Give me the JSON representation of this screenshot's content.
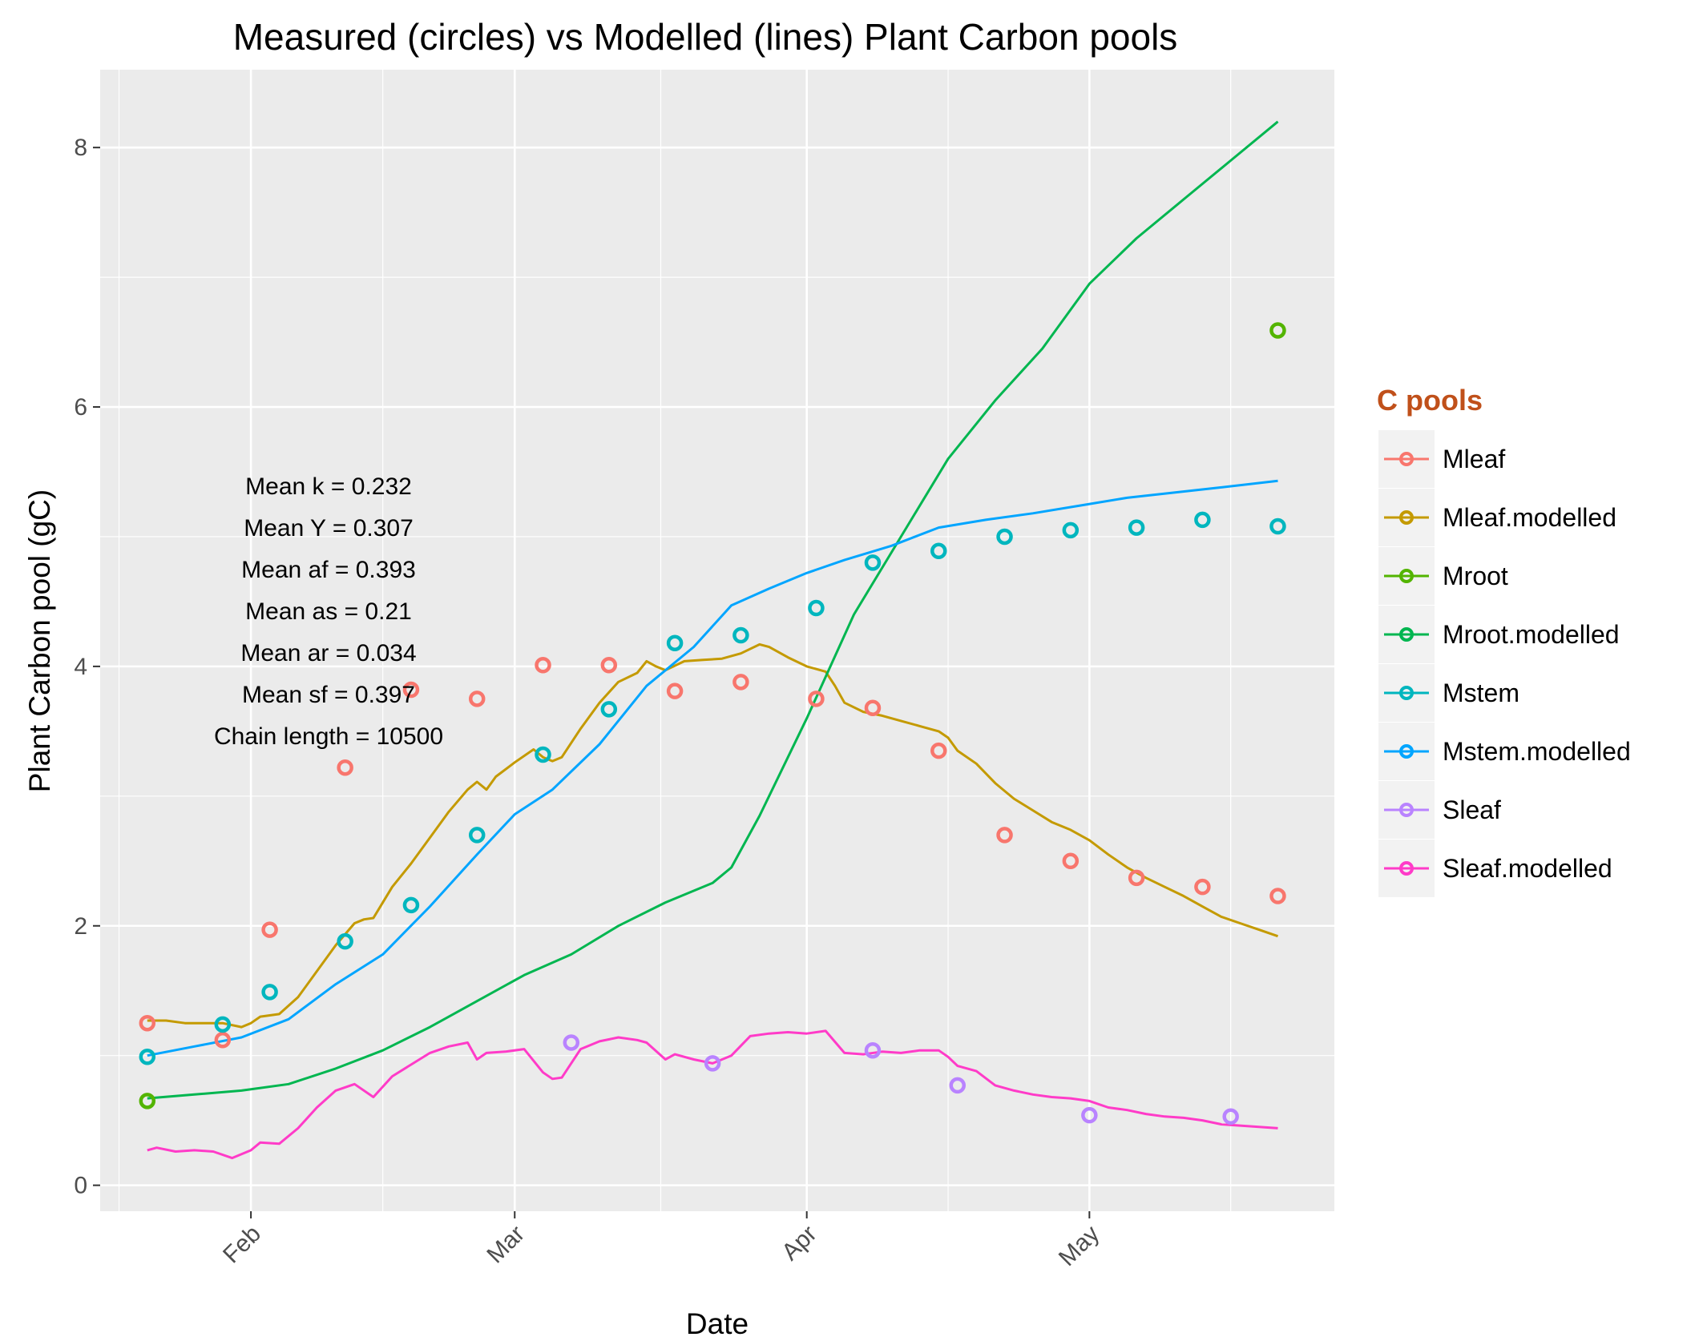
{
  "chart_data": {
    "type": "line",
    "title": "Measured (circles) vs Modelled (lines) Plant Carbon pools",
    "xlabel": "Date",
    "ylabel": "Plant Carbon pool (gC)",
    "x_unit": "date",
    "xlim": [
      "2013-01-16",
      "2013-05-27"
    ],
    "ylim": [
      -0.2,
      8.6
    ],
    "x_ticks": [
      {
        "date": "2013-02-01",
        "label": "Feb"
      },
      {
        "date": "2013-03-01",
        "label": "Mar"
      },
      {
        "date": "2013-04-01",
        "label": "Apr"
      },
      {
        "date": "2013-05-01",
        "label": "May"
      }
    ],
    "y_ticks": [
      0,
      2,
      4,
      6,
      8
    ],
    "grid": true,
    "legend": {
      "title": "C pools",
      "title_color": "#c0501a",
      "placement": "right"
    },
    "annotations": [
      "Mean k =  0.232",
      "Mean Y =  0.307",
      "Mean af =  0.393",
      "Mean as =  0.21",
      "Mean ar =  0.034",
      "Mean sf =  0.397",
      "Chain length =  10500"
    ],
    "series": [
      {
        "name": "Mleaf",
        "kind": "points",
        "color": "#f8766d",
        "points": [
          [
            "2013-01-21",
            1.25
          ],
          [
            "2013-01-29",
            1.12
          ],
          [
            "2013-02-03",
            1.97
          ],
          [
            "2013-02-11",
            3.22
          ],
          [
            "2013-02-18",
            3.82
          ],
          [
            "2013-02-25",
            3.75
          ],
          [
            "2013-03-04",
            4.01
          ],
          [
            "2013-03-11",
            4.01
          ],
          [
            "2013-03-18",
            3.81
          ],
          [
            "2013-03-25",
            3.88
          ],
          [
            "2013-04-02",
            3.75
          ],
          [
            "2013-04-08",
            3.68
          ],
          [
            "2013-04-15",
            3.35
          ],
          [
            "2013-04-22",
            2.7
          ],
          [
            "2013-04-29",
            2.5
          ],
          [
            "2013-05-06",
            2.37
          ],
          [
            "2013-05-13",
            2.3
          ],
          [
            "2013-05-21",
            2.23
          ]
        ]
      },
      {
        "name": "Mleaf.modelled",
        "kind": "line",
        "color": "#c49a00",
        "points": [
          [
            "2013-01-21",
            1.27
          ],
          [
            "2013-01-23",
            1.27
          ],
          [
            "2013-01-25",
            1.25
          ],
          [
            "2013-01-27",
            1.25
          ],
          [
            "2013-01-29",
            1.25
          ],
          [
            "2013-01-31",
            1.22
          ],
          [
            "2013-02-01",
            1.25
          ],
          [
            "2013-02-02",
            1.3
          ],
          [
            "2013-02-04",
            1.32
          ],
          [
            "2013-02-06",
            1.45
          ],
          [
            "2013-02-08",
            1.65
          ],
          [
            "2013-02-10",
            1.85
          ],
          [
            "2013-02-12",
            2.02
          ],
          [
            "2013-02-13",
            2.05
          ],
          [
            "2013-02-14",
            2.06
          ],
          [
            "2013-02-16",
            2.3
          ],
          [
            "2013-02-18",
            2.48
          ],
          [
            "2013-02-20",
            2.68
          ],
          [
            "2013-02-22",
            2.88
          ],
          [
            "2013-02-24",
            3.05
          ],
          [
            "2013-02-25",
            3.11
          ],
          [
            "2013-02-26",
            3.05
          ],
          [
            "2013-02-27",
            3.15
          ],
          [
            "2013-03-01",
            3.26
          ],
          [
            "2013-03-03",
            3.36
          ],
          [
            "2013-03-04",
            3.3
          ],
          [
            "2013-03-05",
            3.27
          ],
          [
            "2013-03-06",
            3.3
          ],
          [
            "2013-03-08",
            3.52
          ],
          [
            "2013-03-10",
            3.72
          ],
          [
            "2013-03-12",
            3.88
          ],
          [
            "2013-03-14",
            3.95
          ],
          [
            "2013-03-15",
            4.04
          ],
          [
            "2013-03-16",
            4.0
          ],
          [
            "2013-03-17",
            3.97
          ],
          [
            "2013-03-19",
            4.04
          ],
          [
            "2013-03-21",
            4.05
          ],
          [
            "2013-03-23",
            4.06
          ],
          [
            "2013-03-25",
            4.1
          ],
          [
            "2013-03-27",
            4.17
          ],
          [
            "2013-03-28",
            4.15
          ],
          [
            "2013-03-30",
            4.07
          ],
          [
            "2013-04-01",
            4.0
          ],
          [
            "2013-04-03",
            3.96
          ],
          [
            "2013-04-04",
            3.85
          ],
          [
            "2013-04-05",
            3.72
          ],
          [
            "2013-04-07",
            3.65
          ],
          [
            "2013-04-09",
            3.62
          ],
          [
            "2013-04-11",
            3.58
          ],
          [
            "2013-04-13",
            3.54
          ],
          [
            "2013-04-15",
            3.5
          ],
          [
            "2013-04-16",
            3.45
          ],
          [
            "2013-04-17",
            3.35
          ],
          [
            "2013-04-19",
            3.25
          ],
          [
            "2013-04-21",
            3.1
          ],
          [
            "2013-04-23",
            2.98
          ],
          [
            "2013-04-25",
            2.89
          ],
          [
            "2013-04-27",
            2.8
          ],
          [
            "2013-04-29",
            2.74
          ],
          [
            "2013-05-01",
            2.66
          ],
          [
            "2013-05-03",
            2.55
          ],
          [
            "2013-05-05",
            2.45
          ],
          [
            "2013-05-07",
            2.37
          ],
          [
            "2013-05-09",
            2.3
          ],
          [
            "2013-05-11",
            2.23
          ],
          [
            "2013-05-13",
            2.15
          ],
          [
            "2013-05-15",
            2.07
          ],
          [
            "2013-05-17",
            2.02
          ],
          [
            "2013-05-19",
            1.97
          ],
          [
            "2013-05-21",
            1.92
          ]
        ]
      },
      {
        "name": "Mroot",
        "kind": "points",
        "color": "#53b400",
        "points": [
          [
            "2013-01-21",
            0.65
          ],
          [
            "2013-05-21",
            6.59
          ]
        ]
      },
      {
        "name": "Mroot.modelled",
        "kind": "line",
        "color": "#00b650",
        "points": [
          [
            "2013-01-21",
            0.67
          ],
          [
            "2013-01-26",
            0.7
          ],
          [
            "2013-01-31",
            0.73
          ],
          [
            "2013-02-05",
            0.78
          ],
          [
            "2013-02-10",
            0.9
          ],
          [
            "2013-02-15",
            1.04
          ],
          [
            "2013-02-20",
            1.22
          ],
          [
            "2013-02-25",
            1.42
          ],
          [
            "2013-03-02",
            1.62
          ],
          [
            "2013-03-07",
            1.78
          ],
          [
            "2013-03-12",
            2.0
          ],
          [
            "2013-03-17",
            2.18
          ],
          [
            "2013-03-22",
            2.33
          ],
          [
            "2013-03-24",
            2.45
          ],
          [
            "2013-03-27",
            2.85
          ],
          [
            "2013-04-01",
            3.6
          ],
          [
            "2013-04-06",
            4.4
          ],
          [
            "2013-04-11",
            5.0
          ],
          [
            "2013-04-16",
            5.6
          ],
          [
            "2013-04-21",
            6.05
          ],
          [
            "2013-04-26",
            6.45
          ],
          [
            "2013-05-01",
            6.95
          ],
          [
            "2013-05-06",
            7.3
          ],
          [
            "2013-05-11",
            7.6
          ],
          [
            "2013-05-16",
            7.9
          ],
          [
            "2013-05-21",
            8.2
          ]
        ]
      },
      {
        "name": "Mstem",
        "kind": "points",
        "color": "#00b6be",
        "points": [
          [
            "2013-01-21",
            0.99
          ],
          [
            "2013-01-29",
            1.24
          ],
          [
            "2013-02-03",
            1.49
          ],
          [
            "2013-02-11",
            1.88
          ],
          [
            "2013-02-18",
            2.16
          ],
          [
            "2013-02-25",
            2.7
          ],
          [
            "2013-03-04",
            3.32
          ],
          [
            "2013-03-11",
            3.67
          ],
          [
            "2013-03-18",
            4.18
          ],
          [
            "2013-03-25",
            4.24
          ],
          [
            "2013-04-02",
            4.45
          ],
          [
            "2013-04-08",
            4.8
          ],
          [
            "2013-04-15",
            4.89
          ],
          [
            "2013-04-22",
            5.0
          ],
          [
            "2013-04-29",
            5.05
          ],
          [
            "2013-05-06",
            5.07
          ],
          [
            "2013-05-13",
            5.13
          ],
          [
            "2013-05-21",
            5.08
          ]
        ]
      },
      {
        "name": "Mstem.modelled",
        "kind": "line",
        "color": "#00a5ff",
        "points": [
          [
            "2013-01-21",
            1.0
          ],
          [
            "2013-01-26",
            1.07
          ],
          [
            "2013-01-31",
            1.14
          ],
          [
            "2013-02-05",
            1.28
          ],
          [
            "2013-02-10",
            1.55
          ],
          [
            "2013-02-15",
            1.78
          ],
          [
            "2013-02-20",
            2.15
          ],
          [
            "2013-02-25",
            2.55
          ],
          [
            "2013-03-01",
            2.86
          ],
          [
            "2013-03-05",
            3.05
          ],
          [
            "2013-03-10",
            3.4
          ],
          [
            "2013-03-15",
            3.85
          ],
          [
            "2013-03-20",
            4.15
          ],
          [
            "2013-03-24",
            4.47
          ],
          [
            "2013-03-28",
            4.6
          ],
          [
            "2013-04-01",
            4.72
          ],
          [
            "2013-04-05",
            4.82
          ],
          [
            "2013-04-10",
            4.93
          ],
          [
            "2013-04-15",
            5.07
          ],
          [
            "2013-04-20",
            5.13
          ],
          [
            "2013-04-25",
            5.18
          ],
          [
            "2013-04-30",
            5.24
          ],
          [
            "2013-05-05",
            5.3
          ],
          [
            "2013-05-10",
            5.34
          ],
          [
            "2013-05-15",
            5.38
          ],
          [
            "2013-05-21",
            5.43
          ]
        ]
      },
      {
        "name": "Sleaf",
        "kind": "points",
        "color": "#b983ff",
        "points": [
          [
            "2013-03-07",
            1.1
          ],
          [
            "2013-03-22",
            0.94
          ],
          [
            "2013-04-08",
            1.04
          ],
          [
            "2013-04-17",
            0.77
          ],
          [
            "2013-05-01",
            0.54
          ],
          [
            "2013-05-16",
            0.53
          ]
        ]
      },
      {
        "name": "Sleaf.modelled",
        "kind": "line",
        "color": "#ff3bc8",
        "points": [
          [
            "2013-01-21",
            0.27
          ],
          [
            "2013-01-22",
            0.29
          ],
          [
            "2013-01-24",
            0.26
          ],
          [
            "2013-01-26",
            0.27
          ],
          [
            "2013-01-28",
            0.26
          ],
          [
            "2013-01-30",
            0.21
          ],
          [
            "2013-02-01",
            0.27
          ],
          [
            "2013-02-02",
            0.33
          ],
          [
            "2013-02-04",
            0.32
          ],
          [
            "2013-02-06",
            0.44
          ],
          [
            "2013-02-08",
            0.6
          ],
          [
            "2013-02-10",
            0.73
          ],
          [
            "2013-02-12",
            0.78
          ],
          [
            "2013-02-14",
            0.68
          ],
          [
            "2013-02-16",
            0.84
          ],
          [
            "2013-02-18",
            0.93
          ],
          [
            "2013-02-20",
            1.02
          ],
          [
            "2013-02-22",
            1.07
          ],
          [
            "2013-02-24",
            1.1
          ],
          [
            "2013-02-25",
            0.97
          ],
          [
            "2013-02-26",
            1.02
          ],
          [
            "2013-02-28",
            1.03
          ],
          [
            "2013-03-02",
            1.05
          ],
          [
            "2013-03-04",
            0.87
          ],
          [
            "2013-03-05",
            0.82
          ],
          [
            "2013-03-06",
            0.83
          ],
          [
            "2013-03-08",
            1.05
          ],
          [
            "2013-03-10",
            1.11
          ],
          [
            "2013-03-12",
            1.14
          ],
          [
            "2013-03-14",
            1.12
          ],
          [
            "2013-03-15",
            1.1
          ],
          [
            "2013-03-17",
            0.97
          ],
          [
            "2013-03-18",
            1.01
          ],
          [
            "2013-03-20",
            0.97
          ],
          [
            "2013-03-22",
            0.94
          ],
          [
            "2013-03-24",
            1.0
          ],
          [
            "2013-03-26",
            1.15
          ],
          [
            "2013-03-28",
            1.17
          ],
          [
            "2013-03-30",
            1.18
          ],
          [
            "2013-04-01",
            1.17
          ],
          [
            "2013-04-03",
            1.19
          ],
          [
            "2013-04-05",
            1.02
          ],
          [
            "2013-04-07",
            1.01
          ],
          [
            "2013-04-09",
            1.03
          ],
          [
            "2013-04-11",
            1.02
          ],
          [
            "2013-04-13",
            1.04
          ],
          [
            "2013-04-15",
            1.04
          ],
          [
            "2013-04-16",
            0.99
          ],
          [
            "2013-04-17",
            0.92
          ],
          [
            "2013-04-19",
            0.88
          ],
          [
            "2013-04-21",
            0.77
          ],
          [
            "2013-04-23",
            0.73
          ],
          [
            "2013-04-25",
            0.7
          ],
          [
            "2013-04-27",
            0.68
          ],
          [
            "2013-04-29",
            0.67
          ],
          [
            "2013-05-01",
            0.65
          ],
          [
            "2013-05-03",
            0.6
          ],
          [
            "2013-05-05",
            0.58
          ],
          [
            "2013-05-07",
            0.55
          ],
          [
            "2013-05-09",
            0.53
          ],
          [
            "2013-05-11",
            0.52
          ],
          [
            "2013-05-13",
            0.5
          ],
          [
            "2013-05-15",
            0.47
          ],
          [
            "2013-05-17",
            0.46
          ],
          [
            "2013-05-19",
            0.45
          ],
          [
            "2013-05-21",
            0.44
          ]
        ]
      }
    ]
  }
}
